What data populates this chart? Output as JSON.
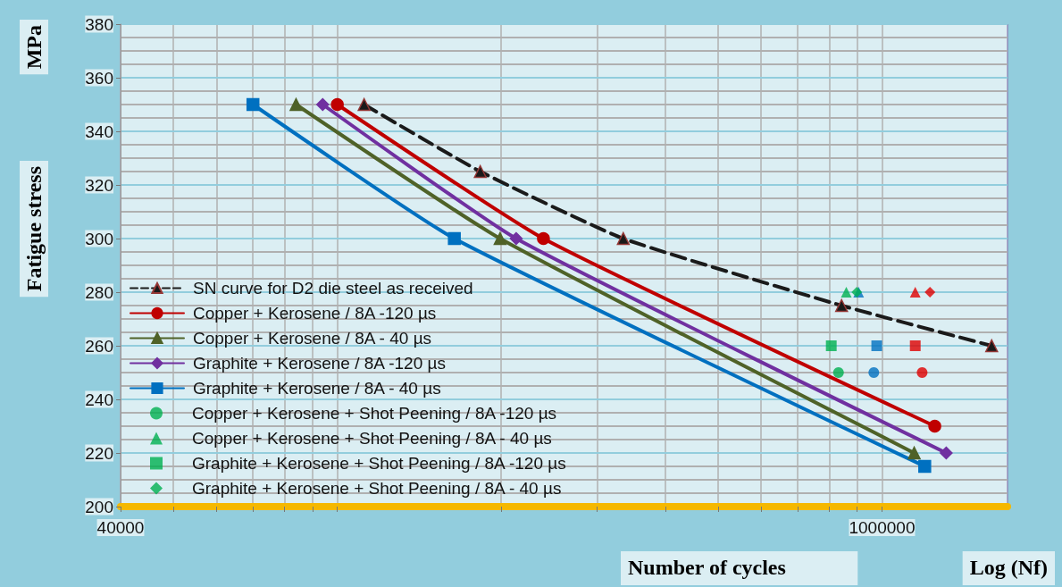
{
  "chart_data": {
    "type": "line",
    "ylabel": "Fatigue stress",
    "xlabel": "Number of cycles",
    "annotations": [
      "MPa",
      "Log (Nf)"
    ],
    "log": "x",
    "xlim": [
      40000,
      1700000
    ],
    "ylim": [
      200,
      380
    ],
    "xticks": [
      40000,
      {
        "value": 50000,
        "label": null
      },
      {
        "value": 60000,
        "label": null
      },
      {
        "value": 70000,
        "label": null
      },
      {
        "value": 80000,
        "label": null
      },
      {
        "value": 90000,
        "label": null
      },
      {
        "value": 100000,
        "label": null
      },
      {
        "value": 200000,
        "label": null
      },
      {
        "value": 300000,
        "label": null
      },
      {
        "value": 400000,
        "label": null
      },
      {
        "value": 500000,
        "label": null
      },
      {
        "value": 600000,
        "label": null
      },
      {
        "value": 700000,
        "label": null
      },
      {
        "value": 800000,
        "label": null
      },
      {
        "value": 900000,
        "label": null
      },
      1000000
    ],
    "yticks": [
      200,
      {
        "value": 205,
        "label": null
      },
      {
        "value": 210,
        "label": null
      },
      {
        "value": 215,
        "label": null
      },
      220,
      {
        "value": 225,
        "label": null
      },
      {
        "value": 230,
        "label": null
      },
      {
        "value": 235,
        "label": null
      },
      240,
      {
        "value": 245,
        "label": null
      },
      {
        "value": 250,
        "label": null
      },
      {
        "value": 255,
        "label": null
      },
      260,
      {
        "value": 265,
        "label": null
      },
      {
        "value": 270,
        "label": null
      },
      {
        "value": 275,
        "label": null
      },
      280,
      {
        "value": 285,
        "label": null
      },
      {
        "value": 290,
        "label": null
      },
      {
        "value": 295,
        "label": null
      },
      300,
      {
        "value": 305,
        "label": null
      },
      {
        "value": 310,
        "label": null
      },
      {
        "value": 315,
        "label": null
      },
      320,
      {
        "value": 325,
        "label": null
      },
      {
        "value": 330,
        "label": null
      },
      {
        "value": 335,
        "label": null
      },
      340,
      {
        "value": 345,
        "label": null
      },
      {
        "value": 350,
        "label": null
      },
      {
        "value": 355,
        "label": null
      },
      360,
      {
        "value": 365,
        "label": null
      },
      {
        "value": 370,
        "label": null
      },
      {
        "value": 375,
        "label": null
      },
      380
    ],
    "grid": true,
    "legend": "bottom left",
    "series": [
      {
        "name": "SN curve for D2 die steel as received",
        "color": "#1a1a1a",
        "marker": "triangle",
        "line_style": "dashed",
        "x": [
          112000,
          183000,
          335000,
          843000,
          1590000
        ],
        "values": [
          350,
          325,
          300,
          275,
          260
        ]
      },
      {
        "name": "Copper + Kerosene / 8A -120 µs",
        "color": "#c00000",
        "marker": "circle",
        "line_style": "solid",
        "x": [
          100000,
          239000,
          1250000
        ],
        "values": [
          350,
          300,
          230
        ]
      },
      {
        "name": "Copper + Kerosene / 8A - 40 µs",
        "color": "#4f6228",
        "marker": "triangle",
        "line_style": "solid",
        "x": [
          84000,
          199000,
          1146000
        ],
        "values": [
          350,
          300,
          220
        ]
      },
      {
        "name": "Graphite + Kerosene / 8A -120 µs",
        "color": "#7030a0",
        "marker": "diamond",
        "line_style": "solid",
        "x": [
          94000,
          213000,
          1312000
        ],
        "values": [
          350,
          300,
          220
        ]
      },
      {
        "name": "Graphite + Kerosene / 8A - 40 µs",
        "color": "#0070c0",
        "marker": "square",
        "line_style": "solid",
        "x": [
          70000,
          164000,
          1198000
        ],
        "values": [
          350,
          300,
          215
        ]
      },
      {
        "name": "Copper + Kerosene + Shot Peening / 8A -120 µs",
        "type": "scatter",
        "color": "#00b050",
        "marker": "circle",
        "x": [
          832000,
          966000,
          1185000
        ],
        "values": [
          250,
          250,
          250
        ],
        "colors": [
          "#00b050",
          "#0070c0",
          "#e00000"
        ]
      },
      {
        "name": "Copper + Kerosene + Shot Peening / 8A - 40 µs",
        "type": "scatter",
        "color": "#00b050",
        "marker": "triangle",
        "x": [
          860000,
          906000,
          1151000
        ],
        "values": [
          280,
          280,
          280
        ],
        "colors": [
          "#00b050",
          "#0070c0",
          "#e00000"
        ]
      },
      {
        "name": "Graphite + Kerosene + Shot Peening / 8A -120 µs",
        "type": "scatter",
        "color": "#00b050",
        "marker": "square",
        "x": [
          807000,
          978000,
          1151000
        ],
        "values": [
          260,
          260,
          260
        ],
        "colors": [
          "#00b050",
          "#0070c0",
          "#e00000"
        ]
      },
      {
        "name": "Graphite + Kerosene + Shot Peening / 8A - 40 µs",
        "type": "scatter",
        "color": "#00b050",
        "marker": "diamond",
        "x": [
          899000,
          1225000
        ],
        "values": [
          280,
          280
        ],
        "colors": [
          "#00b050",
          "#e00000"
        ]
      }
    ]
  }
}
